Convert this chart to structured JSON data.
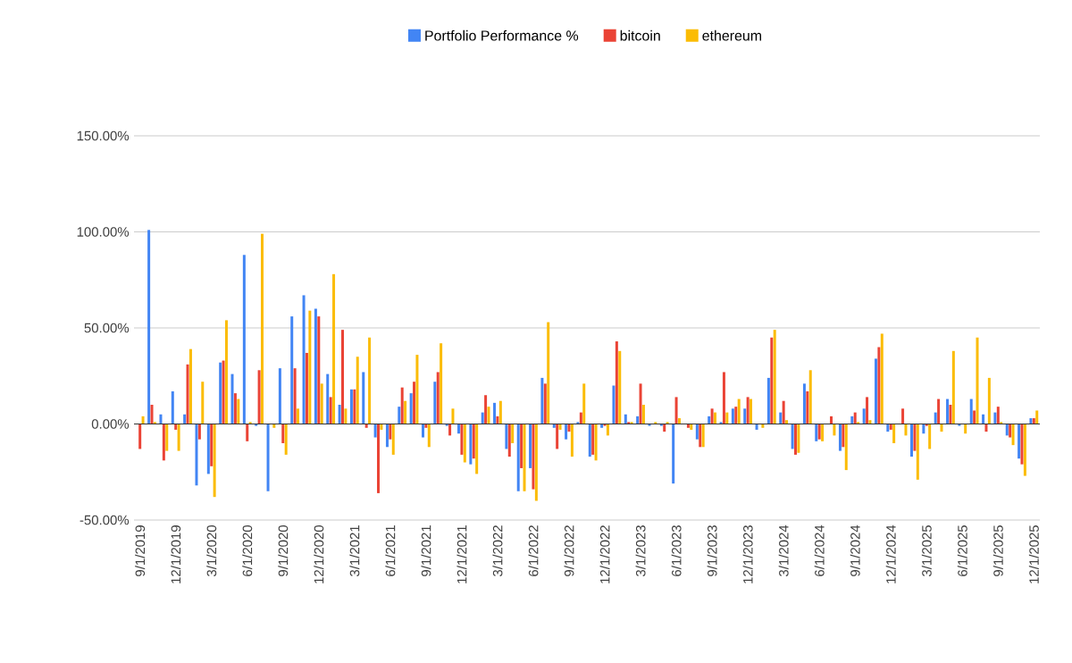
{
  "chart_data": {
    "type": "bar",
    "categories": [
      "9/1/2019",
      null,
      null,
      "12/1/2019",
      null,
      null,
      "3/1/2020",
      null,
      null,
      "6/1/2020",
      null,
      null,
      "9/1/2020",
      null,
      null,
      "12/1/2020",
      null,
      null,
      "3/1/2021",
      null,
      null,
      "6/1/2021",
      null,
      null,
      "9/1/2021",
      null,
      null,
      "12/1/2021",
      null,
      null,
      "3/1/2022",
      null,
      null,
      "6/1/2022",
      null,
      null,
      "9/1/2022",
      null,
      null,
      "12/1/2022",
      null,
      null,
      "3/1/2023",
      null,
      null,
      "6/1/2023",
      null,
      null,
      "9/1/2023",
      null,
      null,
      "12/1/2023",
      null,
      null,
      "3/1/2024",
      null,
      null,
      "6/1/2024",
      null,
      null,
      "9/1/2024",
      null,
      null,
      "12/1/2024",
      null,
      null,
      "3/1/2025",
      null,
      null,
      "6/1/2025",
      null,
      null,
      "9/1/2025",
      null,
      null,
      "12/1/2025"
    ],
    "series": [
      {
        "name": "Portfolio Performance %",
        "color": "#4285f4",
        "values": [
          0,
          101,
          5,
          17,
          5,
          -32,
          -26,
          32,
          26,
          88,
          -1,
          -35,
          29,
          56,
          67,
          60,
          26,
          10,
          18,
          27,
          -7,
          -12,
          9,
          16,
          -7,
          22,
          -1,
          -5,
          -21,
          6,
          11,
          -13,
          -35,
          -23,
          24,
          -2,
          -8,
          1,
          -17,
          -2,
          20,
          5,
          4,
          -1,
          -1,
          -31,
          0,
          -8,
          4,
          1,
          8,
          8,
          -3,
          24,
          6,
          -13,
          21,
          -9,
          0,
          -14,
          4,
          8,
          34,
          -4,
          0,
          -17,
          -5,
          6,
          13,
          -1,
          13,
          5,
          6,
          -6,
          -18,
          3
        ]
      },
      {
        "name": "bitcoin",
        "color": "#ea4335",
        "values": [
          -13,
          10,
          -19,
          -3,
          31,
          -8,
          -22,
          33,
          16,
          -9,
          28,
          0,
          -10,
          29,
          37,
          56,
          14,
          49,
          18,
          -2,
          -36,
          -8,
          19,
          22,
          -2,
          27,
          -6,
          -16,
          -18,
          15,
          4,
          -17,
          -23,
          -34,
          21,
          -13,
          -4,
          6,
          -16,
          -1,
          43,
          1,
          21,
          0,
          -4,
          14,
          -2,
          -12,
          8,
          27,
          9,
          14,
          null,
          45,
          12,
          -16,
          17,
          -8,
          4,
          -12,
          6,
          14,
          40,
          -3,
          8,
          -14,
          -1,
          13,
          10,
          0,
          7,
          -4,
          9,
          -7,
          -21,
          3
        ]
      },
      {
        "name": "ethereum",
        "color": "#fbbc04",
        "values": [
          4,
          1,
          -14,
          -14,
          39,
          22,
          -38,
          54,
          13,
          1,
          99,
          -2,
          -16,
          8,
          59,
          21,
          78,
          8,
          35,
          45,
          -3,
          -16,
          12,
          36,
          -12,
          42,
          8,
          -20,
          -26,
          9,
          12,
          -10,
          -35,
          -40,
          53,
          -3,
          -17,
          21,
          -19,
          -6,
          38,
          1,
          10,
          1,
          1,
          3,
          -3,
          -12,
          6,
          6,
          13,
          13,
          -2,
          49,
          2,
          -15,
          28,
          -9,
          -6,
          -24,
          1,
          2,
          47,
          -10,
          -6,
          -29,
          -13,
          -4,
          38,
          -5,
          45,
          24,
          1,
          -11,
          -27,
          7
        ]
      }
    ],
    "ylim": [
      -50,
      150
    ],
    "yticks": [
      {
        "value": -50,
        "label": "-50.00%"
      },
      {
        "value": 0,
        "label": "0.00%"
      },
      {
        "value": 50,
        "label": "50.00%"
      },
      {
        "value": 100,
        "label": "100.00%"
      },
      {
        "value": 150,
        "label": "150.00%"
      }
    ],
    "grid": "y",
    "legend": "top"
  }
}
